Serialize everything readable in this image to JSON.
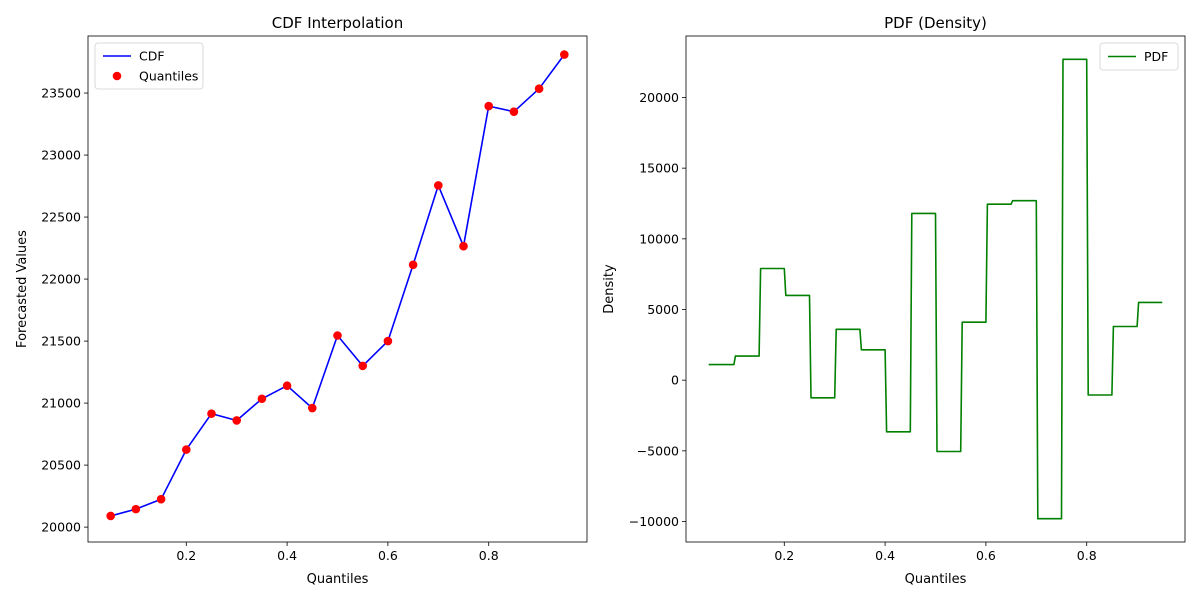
{
  "chart_data": [
    {
      "type": "line",
      "title": "CDF Interpolation",
      "xlabel": "Quantiles",
      "ylabel": "Forecasted Values",
      "xlim": [
        0.005,
        0.995
      ],
      "ylim": [
        19880,
        23960
      ],
      "xticks": [
        0.2,
        0.4,
        0.6,
        0.8
      ],
      "xtick_labels": [
        "0.2",
        "0.4",
        "0.6",
        "0.8"
      ],
      "yticks": [
        20000,
        20500,
        21000,
        21500,
        22000,
        22500,
        23000,
        23500
      ],
      "ytick_labels": [
        "20000",
        "20500",
        "21000",
        "21500",
        "22000",
        "22500",
        "23000",
        "23500"
      ],
      "grid": false,
      "legend_position": "upper-left",
      "x": [
        0.05,
        0.1,
        0.15,
        0.2,
        0.25,
        0.3,
        0.35,
        0.4,
        0.45,
        0.5,
        0.55,
        0.6,
        0.65,
        0.7,
        0.75,
        0.8,
        0.85,
        0.9,
        0.95
      ],
      "series": [
        {
          "name": "CDF",
          "kind": "line",
          "color": "#0000ff",
          "values": [
            20090,
            20145,
            20225,
            20625,
            20915,
            20860,
            21035,
            21140,
            20960,
            21545,
            21300,
            21500,
            22115,
            22755,
            22265,
            23395,
            23350,
            23535,
            23810
          ]
        },
        {
          "name": "Quantiles",
          "kind": "scatter",
          "color": "#ff0000",
          "values": [
            20090,
            20145,
            20225,
            20625,
            20915,
            20860,
            21035,
            21140,
            20960,
            21545,
            21300,
            21500,
            22115,
            22755,
            22265,
            23395,
            23350,
            23535,
            23810
          ]
        }
      ]
    },
    {
      "type": "line",
      "title": "PDF (Density)",
      "xlabel": "Quantiles",
      "ylabel": "Density",
      "xlim": [
        0.005,
        0.995
      ],
      "ylim": [
        -11450,
        24350
      ],
      "xticks": [
        0.2,
        0.4,
        0.6,
        0.8
      ],
      "xtick_labels": [
        "0.2",
        "0.4",
        "0.6",
        "0.8"
      ],
      "yticks": [
        -10000,
        -5000,
        0,
        5000,
        10000,
        15000,
        20000
      ],
      "ytick_labels": [
        "−10000",
        "−5000",
        "0",
        "5000",
        "10000",
        "15000",
        "20000"
      ],
      "grid": false,
      "legend_position": "upper-right",
      "segment_x": [
        0.05,
        0.1,
        0.15,
        0.2,
        0.25,
        0.3,
        0.35,
        0.4,
        0.45,
        0.5,
        0.55,
        0.6,
        0.65,
        0.7,
        0.75,
        0.8,
        0.85,
        0.9,
        0.95
      ],
      "series": [
        {
          "name": "PDF",
          "kind": "step",
          "color": "#008000",
          "values": [
            1100,
            1700,
            7900,
            6000,
            -1250,
            3600,
            2150,
            -3650,
            11800,
            -5050,
            4100,
            12450,
            12700,
            -9800,
            22700,
            -1050,
            3800,
            5500
          ]
        }
      ]
    }
  ]
}
